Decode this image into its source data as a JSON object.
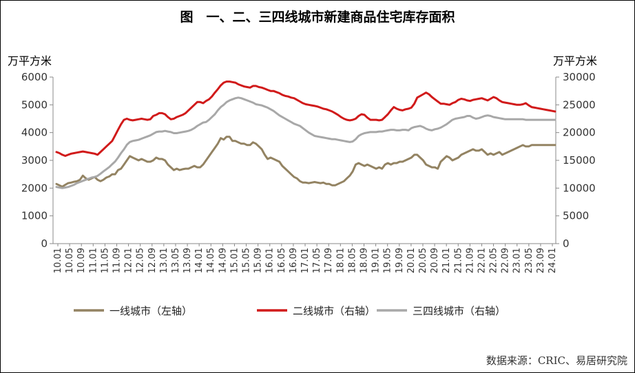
{
  "chart_data": {
    "type": "line",
    "title": "图　一、二、三四线城市新建商品住宅库存面积",
    "ylabel_left": "万平方米",
    "ylabel_right": "万平方米",
    "ylim_left": [
      0,
      6000
    ],
    "ylim_right": [
      0,
      30000
    ],
    "yticks_left": [
      "0",
      "1000",
      "2000",
      "3000",
      "4000",
      "5000",
      "6000"
    ],
    "yticks_right": [
      "0",
      "5000",
      "10000",
      "15000",
      "20000",
      "25000",
      "30000"
    ],
    "x_tick_labels": [
      "10.01",
      "10.05",
      "10.09",
      "11.01",
      "11.05",
      "11.09",
      "12.01",
      "12.05",
      "12.09",
      "13.01",
      "13.05",
      "13.09",
      "14.01",
      "14.05",
      "14.09",
      "15.01",
      "15.05",
      "15.09",
      "16.01",
      "16.05",
      "16.09",
      "17.01",
      "17.05",
      "17.09",
      "18.01",
      "18.05",
      "18.09",
      "19.01",
      "19.05",
      "19.09",
      "20.01",
      "20.05",
      "20.09",
      "21.01",
      "21.05",
      "21.09",
      "22.01",
      "22.05",
      "22.09",
      "23.01",
      "23.05",
      "23.09",
      "24.01"
    ],
    "x_note": "Monthly data, Jan 2010 to Mar 2024 (171 points); values estimated from the chart.",
    "series": [
      {
        "name": "一线城市（左轴）",
        "axis": "left",
        "color": "#938362",
        "values": [
          2150,
          2100,
          2050,
          2120,
          2180,
          2200,
          2230,
          2250,
          2300,
          2450,
          2350,
          2300,
          2350,
          2400,
          2300,
          2250,
          2300,
          2380,
          2420,
          2500,
          2500,
          2650,
          2700,
          2850,
          3000,
          3150,
          3100,
          3050,
          3000,
          3050,
          3000,
          2950,
          2950,
          3000,
          3100,
          3050,
          3050,
          3000,
          2850,
          2750,
          2650,
          2700,
          2650,
          2680,
          2700,
          2700,
          2750,
          2800,
          2750,
          2750,
          2850,
          3000,
          3150,
          3300,
          3450,
          3600,
          3800,
          3750,
          3850,
          3850,
          3700,
          3700,
          3650,
          3600,
          3600,
          3550,
          3550,
          3650,
          3600,
          3500,
          3400,
          3200,
          3050,
          3100,
          3050,
          3000,
          2950,
          2800,
          2700,
          2600,
          2500,
          2400,
          2350,
          2250,
          2200,
          2200,
          2180,
          2200,
          2220,
          2200,
          2180,
          2200,
          2150,
          2150,
          2100,
          2100,
          2150,
          2200,
          2250,
          2350,
          2450,
          2600,
          2850,
          2900,
          2850,
          2800,
          2850,
          2800,
          2750,
          2700,
          2750,
          2700,
          2850,
          2900,
          2850,
          2900,
          2900,
          2950,
          2950,
          3000,
          3050,
          3100,
          3200,
          3200,
          3100,
          3000,
          2850,
          2800,
          2750,
          2750,
          2700,
          2950,
          3050,
          3150,
          3100,
          3000,
          3050,
          3100,
          3200,
          3250,
          3300,
          3350,
          3400,
          3350,
          3350,
          3400,
          3300,
          3200,
          3250,
          3200,
          3250,
          3300,
          3200,
          3250,
          3300,
          3350,
          3400,
          3450,
          3500,
          3550,
          3500,
          3500,
          3550,
          3550,
          3550,
          3550,
          3550,
          3550,
          3550,
          3550,
          3550
        ],
        "note": "first-tier cities"
      },
      {
        "name": "二线城市（右轴）",
        "axis": "right",
        "color": "#d11a1a",
        "values": [
          16500,
          16300,
          16000,
          15800,
          16000,
          16200,
          16300,
          16400,
          16500,
          16600,
          16500,
          16400,
          16300,
          16200,
          16000,
          16500,
          17000,
          17500,
          18000,
          18500,
          19500,
          20500,
          21500,
          22300,
          22500,
          22300,
          22200,
          22300,
          22400,
          22500,
          22400,
          22300,
          22400,
          23000,
          23200,
          23500,
          23500,
          23300,
          22800,
          22400,
          22500,
          22800,
          23000,
          23200,
          23500,
          24000,
          24500,
          25000,
          25500,
          25500,
          25300,
          25700,
          26000,
          26500,
          27200,
          27800,
          28500,
          29000,
          29200,
          29200,
          29100,
          29000,
          28700,
          28500,
          28300,
          28200,
          28100,
          28400,
          28400,
          28200,
          28100,
          27900,
          27700,
          27500,
          27500,
          27300,
          27100,
          26800,
          26600,
          26500,
          26300,
          26200,
          25900,
          25600,
          25300,
          25100,
          25000,
          24900,
          24800,
          24700,
          24500,
          24300,
          24200,
          24000,
          23800,
          23500,
          23200,
          22800,
          22500,
          22300,
          22200,
          22300,
          22500,
          23000,
          23300,
          23200,
          22700,
          22300,
          22300,
          22300,
          22200,
          22300,
          22800,
          23300,
          24000,
          24600,
          24300,
          24100,
          24000,
          24200,
          24300,
          24500,
          25200,
          26300,
          26600,
          26900,
          27200,
          26900,
          26400,
          26000,
          25600,
          25200,
          25200,
          25100,
          25000,
          25300,
          25500,
          25900,
          26100,
          26000,
          25800,
          25700,
          25900,
          26000,
          26100,
          26200,
          26000,
          25800,
          26100,
          26400,
          26200,
          25800,
          25500,
          25400,
          25300,
          25200,
          25100,
          25000,
          25000,
          25100,
          25300,
          24900,
          24600,
          24500,
          24400,
          24300,
          24200,
          24100,
          24000,
          23900,
          23800
        ],
        "note": "second-tier cities"
      },
      {
        "name": "三四线城市（右轴）",
        "axis": "right",
        "color": "#a8a8a8",
        "values": [
          10200,
          10100,
          10000,
          10100,
          10200,
          10400,
          10600,
          10900,
          11100,
          11300,
          11500,
          11700,
          11900,
          12000,
          12200,
          12600,
          13000,
          13400,
          13800,
          14300,
          14800,
          15500,
          16300,
          17000,
          17800,
          18300,
          18500,
          18600,
          18700,
          18900,
          19100,
          19300,
          19500,
          19800,
          20100,
          20200,
          20200,
          20300,
          20200,
          20100,
          19900,
          19900,
          20000,
          20100,
          20200,
          20300,
          20500,
          20800,
          21200,
          21500,
          21800,
          21900,
          22300,
          22800,
          23300,
          24000,
          24600,
          25000,
          25500,
          25800,
          26000,
          26200,
          26300,
          26200,
          26000,
          25800,
          25600,
          25400,
          25100,
          25000,
          24900,
          24700,
          24500,
          24200,
          23900,
          23500,
          23100,
          22800,
          22500,
          22200,
          21900,
          21600,
          21400,
          21200,
          20800,
          20400,
          20000,
          19700,
          19400,
          19300,
          19200,
          19100,
          19000,
          18900,
          18800,
          18800,
          18700,
          18600,
          18500,
          18400,
          18300,
          18400,
          18800,
          19400,
          19700,
          19900,
          20000,
          20100,
          20100,
          20100,
          20200,
          20200,
          20300,
          20400,
          20500,
          20500,
          20400,
          20400,
          20500,
          20500,
          20400,
          20800,
          21000,
          21100,
          21200,
          21000,
          20700,
          20500,
          20400,
          20600,
          20700,
          20900,
          21200,
          21500,
          21900,
          22300,
          22500,
          22600,
          22700,
          22800,
          23000,
          23000,
          22700,
          22500,
          22600,
          22800,
          23000,
          23100,
          23000,
          22800,
          22700,
          22600,
          22500,
          22400,
          22400,
          22400,
          22400,
          22400,
          22400,
          22400,
          22300,
          22300,
          22300,
          22300,
          22300,
          22300,
          22300,
          22300,
          22300,
          22300,
          22300
        ],
        "note": "third- and fourth-tier cities"
      }
    ],
    "legend_position": "bottom",
    "grid": false
  },
  "source_text": "数据来源：CRIC、易居研究院"
}
